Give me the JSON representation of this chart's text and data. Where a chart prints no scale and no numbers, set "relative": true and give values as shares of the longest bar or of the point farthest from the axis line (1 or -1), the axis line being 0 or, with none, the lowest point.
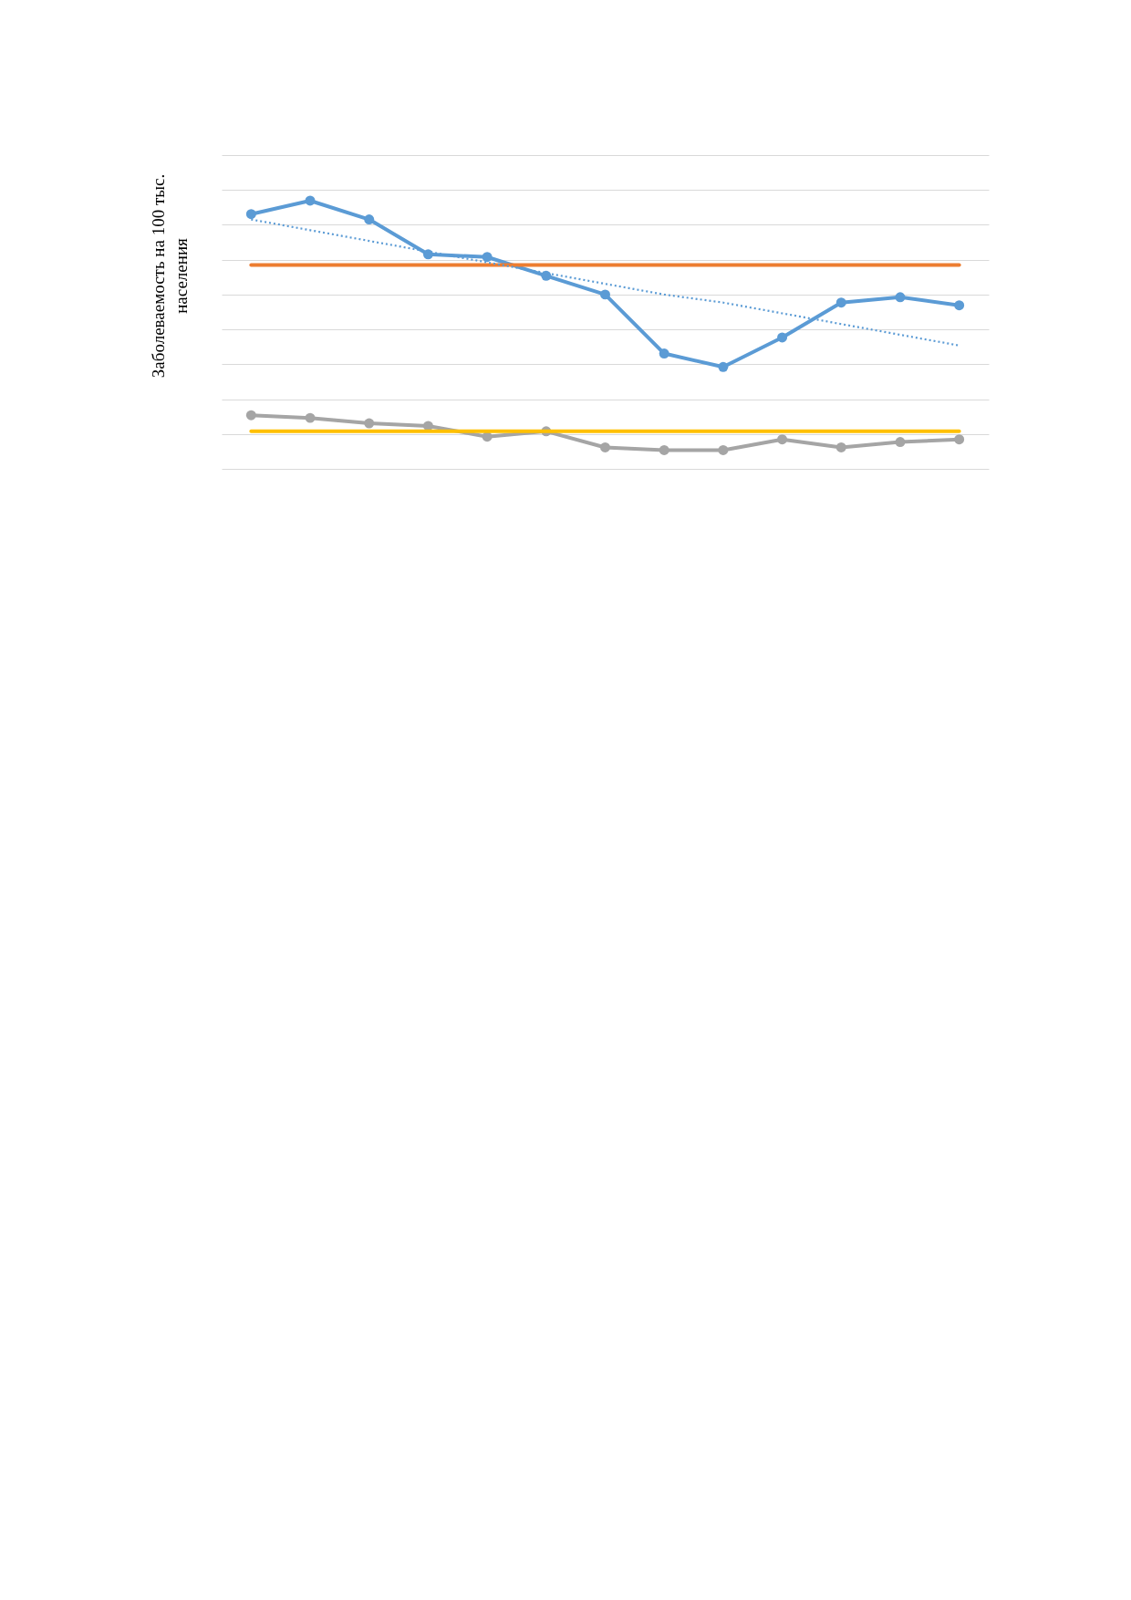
{
  "chart_data": {
    "type": "line",
    "relative": true,
    "ylabel": "Заболеваемость на 100 тыс.\nнаселения",
    "categories": [
      null,
      null,
      null,
      null,
      null,
      null,
      null,
      null,
      null,
      null,
      null,
      null,
      null
    ],
    "series": [
      {
        "color": "#5b9bd5",
        "values": [
          0.95,
          1,
          0.93,
          0.8,
          0.79,
          0.72,
          0.65,
          0.43,
          0.38,
          0.49,
          0.62,
          0.64,
          0.61
        ]
      },
      {
        "color": "#a5a5a5",
        "values": [
          0.2,
          0.19,
          0.17,
          0.16,
          0.12,
          0.14,
          0.08,
          0.07,
          0.07,
          0.11,
          0.08,
          0.1,
          0.11
        ]
      },
      {
        "color": "#ed7d31",
        "marker": "none",
        "values": [
          0.76,
          0.76,
          0.76,
          0.76,
          0.76,
          0.76,
          0.76,
          0.76,
          0.76,
          0.76,
          0.76,
          0.76,
          0.76
        ]
      },
      {
        "color": "#ffc000",
        "marker": "none",
        "values": [
          0.14,
          0.14,
          0.14,
          0.14,
          0.14,
          0.14,
          0.14,
          0.14,
          0.14,
          0.14,
          0.14,
          0.14,
          0.14
        ]
      },
      {
        "color": "#5b9bd5",
        "marker": "none",
        "line_style": "dotted",
        "values": [
          0.93,
          0.89,
          0.85,
          0.81,
          0.77,
          0.73,
          0.69,
          0.65,
          0.62,
          0.58,
          0.54,
          0.5,
          0.46
        ]
      }
    ],
    "marker": "circle",
    "line_style": "solid",
    "grid": "y"
  }
}
